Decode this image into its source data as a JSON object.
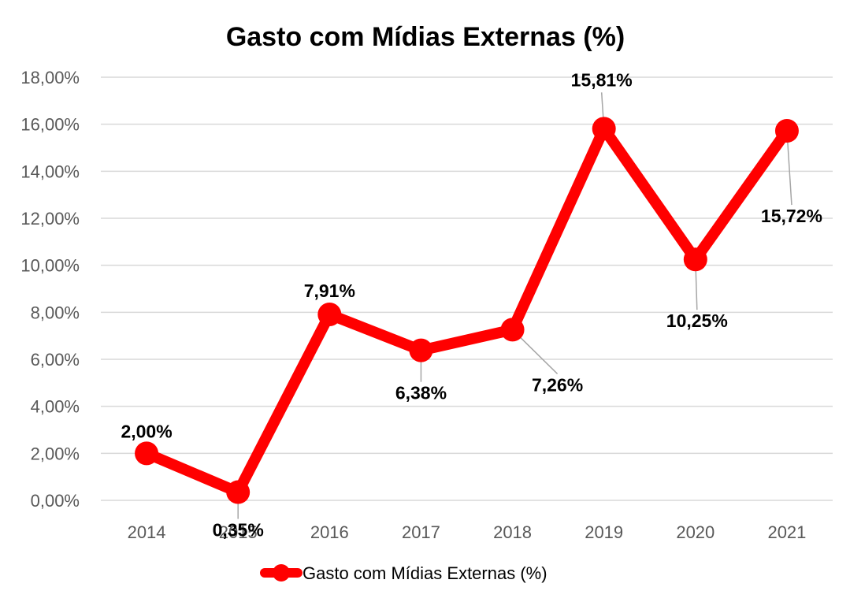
{
  "chart_data": {
    "type": "line",
    "title": "Gasto com Mídias Externas (%)",
    "categories": [
      "2014",
      "2015",
      "2016",
      "2017",
      "2018",
      "2019",
      "2020",
      "2021"
    ],
    "series": [
      {
        "name": "Gasto com Mídias Externas (%)",
        "values": [
          2.0,
          0.35,
          7.91,
          6.38,
          7.26,
          15.81,
          10.25,
          15.72
        ],
        "labels": [
          "2,00%",
          "0,35%",
          "7,91%",
          "6,38%",
          "7,26%",
          "15,81%",
          "10,25%",
          "15,72%"
        ],
        "color": "#ff0000"
      }
    ],
    "ylim": [
      0,
      18
    ],
    "yticks": [
      "0,00%",
      "2,00%",
      "4,00%",
      "6,00%",
      "8,00%",
      "10,00%",
      "12,00%",
      "14,00%",
      "16,00%",
      "18,00%"
    ],
    "grid": true,
    "legend": "bottom"
  }
}
